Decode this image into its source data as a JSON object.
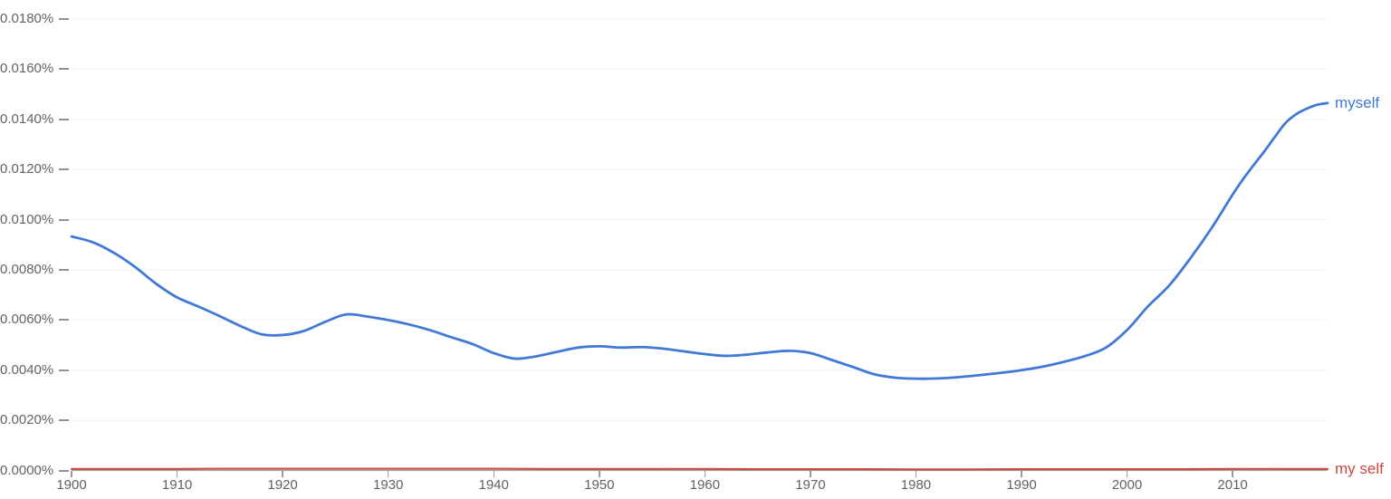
{
  "colors": {
    "background": "#ffffff",
    "gridline": "#f0f0f0",
    "axis_line": "#a8a8a8",
    "y_tick_mark": "#8f9296",
    "x_tick_mark": "#9a9a9a",
    "axis_label_text": "#5f6368"
  },
  "chart_data": {
    "type": "line",
    "grid": true,
    "legend_position": "line-end-labels",
    "x_range": [
      1900,
      2019
    ],
    "y_range_percent": [
      0,
      0.018
    ],
    "x_tick_years": [
      1900,
      1910,
      1920,
      1930,
      1940,
      1950,
      1960,
      1970,
      1980,
      1990,
      2000,
      2010
    ],
    "x_tick_labels": [
      "1900",
      "1910",
      "1920",
      "1930",
      "1940",
      "1950",
      "1960",
      "1970",
      "1980",
      "1990",
      "2000",
      "2010"
    ],
    "y_tick_values": [
      0,
      0.002,
      0.004,
      0.006,
      0.008,
      0.01,
      0.012,
      0.014,
      0.016,
      0.018
    ],
    "y_tick_labels": [
      "0.0000%",
      "0.0020%",
      "0.0040%",
      "0.0060%",
      "0.0080%",
      "0.0100%",
      "0.0120%",
      "0.0140%",
      "0.0160%",
      "0.0180%"
    ],
    "series": [
      {
        "name": "myself",
        "color": "#4079d6",
        "x": [
          1900,
          1902,
          1904,
          1906,
          1908,
          1910,
          1912,
          1914,
          1916,
          1918,
          1920,
          1922,
          1924,
          1926,
          1928,
          1930,
          1932,
          1934,
          1936,
          1938,
          1940,
          1942,
          1944,
          1946,
          1948,
          1950,
          1952,
          1954,
          1956,
          1958,
          1960,
          1962,
          1964,
          1966,
          1968,
          1970,
          1972,
          1974,
          1976,
          1978,
          1980,
          1982,
          1984,
          1986,
          1988,
          1990,
          1992,
          1994,
          1996,
          1998,
          2000,
          2002,
          2004,
          2006,
          2008,
          2010,
          2011,
          2012,
          2013,
          2014,
          2015,
          2016,
          2017,
          2018,
          2019
        ],
        "values_percent": [
          0.00933,
          0.0091,
          0.00868,
          0.00812,
          0.00745,
          0.0069,
          0.00654,
          0.00616,
          0.00576,
          0.00543,
          0.0054,
          0.00556,
          0.00592,
          0.00622,
          0.00614,
          0.006,
          0.00582,
          0.00559,
          0.00531,
          0.00504,
          0.00468,
          0.00446,
          0.00455,
          0.00473,
          0.0049,
          0.00495,
          0.0049,
          0.00492,
          0.00486,
          0.00475,
          0.00464,
          0.00457,
          0.00462,
          0.00471,
          0.00477,
          0.00468,
          0.00441,
          0.00413,
          0.00384,
          0.0037,
          0.00366,
          0.00367,
          0.00372,
          0.0038,
          0.00389,
          0.004,
          0.00414,
          0.00433,
          0.00456,
          0.0049,
          0.0056,
          0.00655,
          0.00738,
          0.00846,
          0.00966,
          0.011,
          0.01162,
          0.01218,
          0.01272,
          0.0133,
          0.01385,
          0.0142,
          0.01442,
          0.01458,
          0.01465
        ]
      },
      {
        "name": "my self",
        "color": "#c64a42",
        "x": [
          1900,
          1905,
          1910,
          1915,
          1920,
          1925,
          1930,
          1935,
          1940,
          1945,
          1950,
          1955,
          1960,
          1965,
          1970,
          1975,
          1980,
          1985,
          1990,
          1995,
          2000,
          2005,
          2010,
          2015,
          2019
        ],
        "values_percent": [
          6e-05,
          6e-05,
          6e-05,
          7e-05,
          7e-05,
          7e-05,
          7e-05,
          7e-05,
          7e-05,
          6e-05,
          6e-05,
          6e-05,
          6e-05,
          5e-05,
          5e-05,
          5e-05,
          4e-05,
          4e-05,
          5e-05,
          5e-05,
          5e-05,
          5e-05,
          6e-05,
          6e-05,
          6e-05
        ]
      }
    ]
  }
}
